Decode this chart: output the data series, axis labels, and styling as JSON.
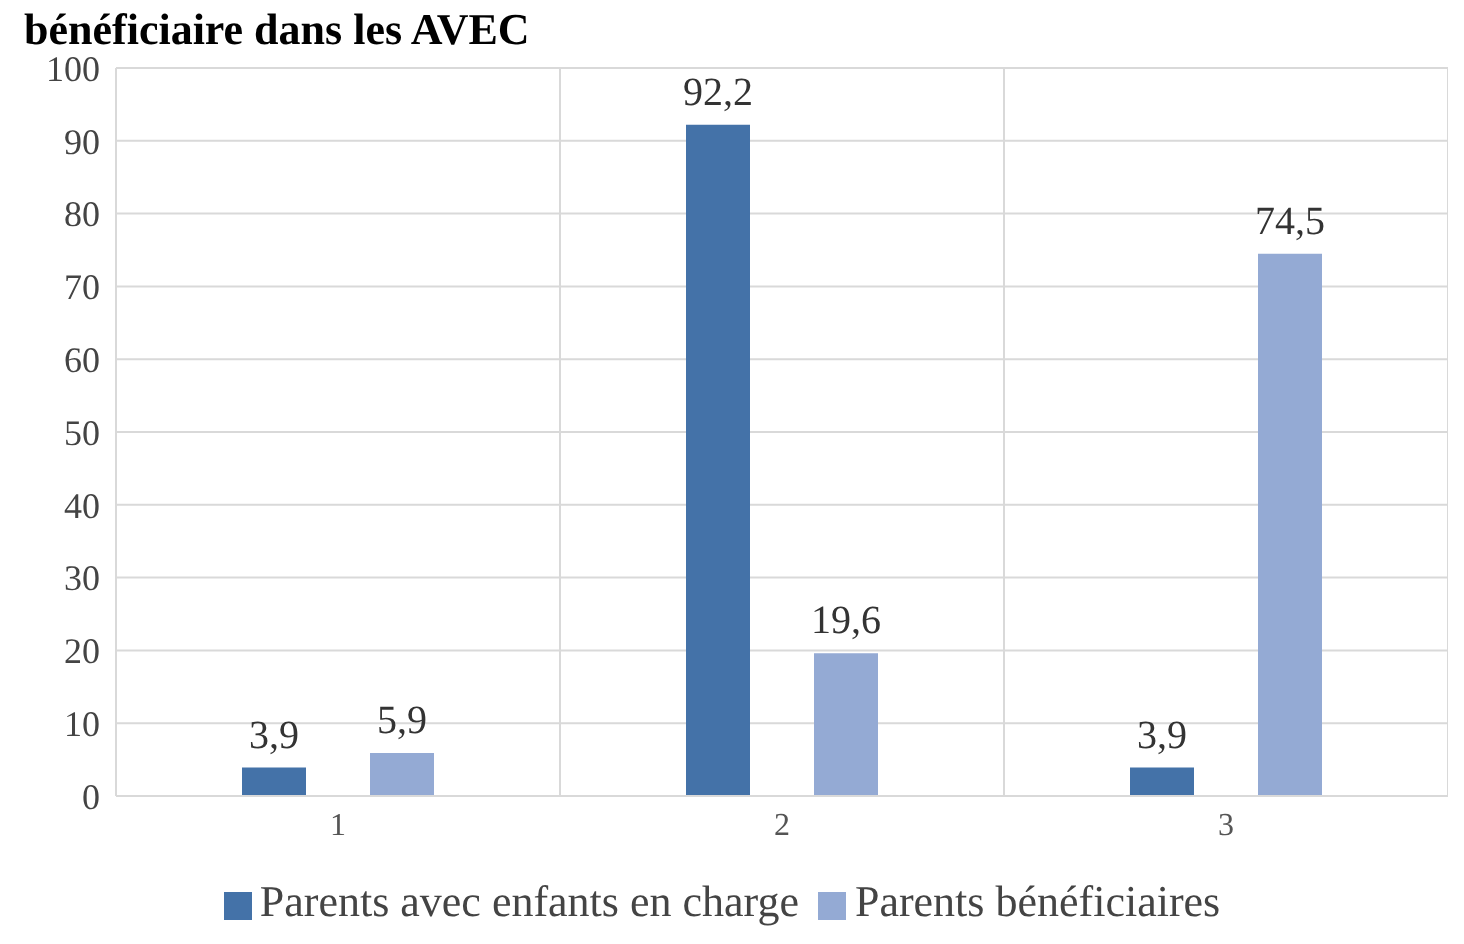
{
  "chart_data": {
    "type": "bar",
    "title": "bénéficiaire dans les AVEC",
    "categories": [
      "1",
      "2",
      "3"
    ],
    "series": [
      {
        "name": "Parents avec enfants en charge",
        "color": "#4472a8",
        "values": [
          3.9,
          92.2,
          3.9
        ],
        "value_labels": [
          "3,9",
          "92,2",
          "3,9"
        ]
      },
      {
        "name": "Parents bénéficiaires",
        "color": "#94aad4",
        "values": [
          5.9,
          19.6,
          74.5
        ],
        "value_labels": [
          "5,9",
          "19,6",
          "74,5"
        ]
      }
    ],
    "ylim": [
      0,
      100
    ],
    "yticks": [
      0,
      10,
      20,
      30,
      40,
      50,
      60,
      70,
      80,
      90,
      100
    ],
    "grid": true,
    "legend": "bottom"
  }
}
